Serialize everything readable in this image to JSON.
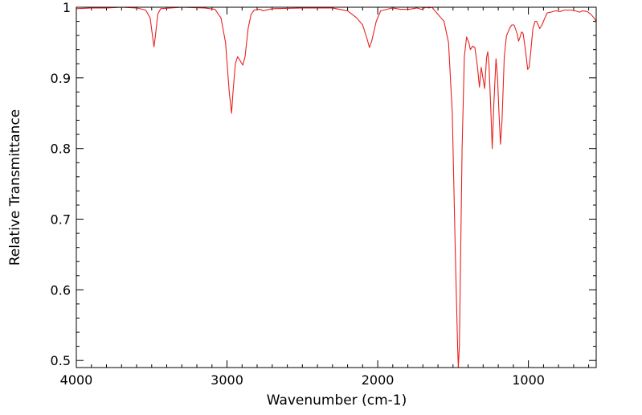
{
  "chart_data": {
    "type": "line",
    "title": "",
    "xlabel": "Wavenumber (cm-1)",
    "ylabel": "Relative Transmittance",
    "xlim": [
      4000,
      550
    ],
    "ylim": [
      0.49,
      1.0
    ],
    "x_reversed": true,
    "grid": false,
    "legend": "none",
    "x_ticks": [
      4000,
      3000,
      2000,
      1000
    ],
    "x_tick_labels": [
      "4000",
      "3000",
      "2000",
      "1000"
    ],
    "y_ticks": [
      0.5,
      0.6,
      0.7,
      0.8,
      0.9,
      1.0
    ],
    "y_tick_labels": [
      "0.5",
      "0.6",
      "0.7",
      "0.8",
      "0.9",
      "1"
    ],
    "series": [
      {
        "color": "#e8211f",
        "points": [
          [
            4000,
            0.998
          ],
          [
            3900,
            0.999
          ],
          [
            3800,
            0.999
          ],
          [
            3700,
            1.0
          ],
          [
            3600,
            0.999
          ],
          [
            3540,
            0.996
          ],
          [
            3510,
            0.985
          ],
          [
            3495,
            0.96
          ],
          [
            3485,
            0.944
          ],
          [
            3475,
            0.96
          ],
          [
            3460,
            0.99
          ],
          [
            3440,
            0.998
          ],
          [
            3300,
            1.0
          ],
          [
            3150,
            0.999
          ],
          [
            3080,
            0.997
          ],
          [
            3040,
            0.985
          ],
          [
            3010,
            0.95
          ],
          [
            2985,
            0.88
          ],
          [
            2970,
            0.85
          ],
          [
            2960,
            0.88
          ],
          [
            2945,
            0.92
          ],
          [
            2930,
            0.93
          ],
          [
            2915,
            0.925
          ],
          [
            2895,
            0.918
          ],
          [
            2880,
            0.93
          ],
          [
            2860,
            0.97
          ],
          [
            2840,
            0.99
          ],
          [
            2820,
            0.996
          ],
          [
            2780,
            0.997
          ],
          [
            2760,
            0.995
          ],
          [
            2700,
            0.998
          ],
          [
            2500,
            0.999
          ],
          [
            2300,
            0.999
          ],
          [
            2200,
            0.995
          ],
          [
            2140,
            0.985
          ],
          [
            2100,
            0.975
          ],
          [
            2070,
            0.955
          ],
          [
            2055,
            0.943
          ],
          [
            2040,
            0.952
          ],
          [
            2010,
            0.98
          ],
          [
            1980,
            0.995
          ],
          [
            1900,
            0.999
          ],
          [
            1850,
            0.997
          ],
          [
            1790,
            0.997
          ],
          [
            1740,
            0.999
          ],
          [
            1710,
            0.997
          ],
          [
            1680,
            1.0
          ],
          [
            1660,
            0.999
          ],
          [
            1640,
            1.0
          ],
          [
            1620,
            0.995
          ],
          [
            1580,
            0.985
          ],
          [
            1560,
            0.98
          ],
          [
            1530,
            0.95
          ],
          [
            1505,
            0.85
          ],
          [
            1485,
            0.65
          ],
          [
            1470,
            0.52
          ],
          [
            1465,
            0.49
          ],
          [
            1458,
            0.52
          ],
          [
            1440,
            0.8
          ],
          [
            1425,
            0.93
          ],
          [
            1410,
            0.958
          ],
          [
            1395,
            0.95
          ],
          [
            1385,
            0.94
          ],
          [
            1370,
            0.945
          ],
          [
            1355,
            0.943
          ],
          [
            1340,
            0.92
          ],
          [
            1325,
            0.887
          ],
          [
            1313,
            0.915
          ],
          [
            1300,
            0.898
          ],
          [
            1290,
            0.885
          ],
          [
            1278,
            0.928
          ],
          [
            1270,
            0.937
          ],
          [
            1262,
            0.92
          ],
          [
            1250,
            0.86
          ],
          [
            1240,
            0.8
          ],
          [
            1230,
            0.86
          ],
          [
            1215,
            0.927
          ],
          [
            1205,
            0.9
          ],
          [
            1195,
            0.85
          ],
          [
            1185,
            0.806
          ],
          [
            1175,
            0.84
          ],
          [
            1160,
            0.93
          ],
          [
            1145,
            0.96
          ],
          [
            1120,
            0.972
          ],
          [
            1110,
            0.975
          ],
          [
            1095,
            0.975
          ],
          [
            1075,
            0.963
          ],
          [
            1065,
            0.952
          ],
          [
            1055,
            0.958
          ],
          [
            1045,
            0.965
          ],
          [
            1035,
            0.963
          ],
          [
            1020,
            0.94
          ],
          [
            1005,
            0.912
          ],
          [
            995,
            0.915
          ],
          [
            985,
            0.935
          ],
          [
            970,
            0.97
          ],
          [
            955,
            0.98
          ],
          [
            945,
            0.98
          ],
          [
            935,
            0.975
          ],
          [
            925,
            0.97
          ],
          [
            910,
            0.975
          ],
          [
            890,
            0.985
          ],
          [
            875,
            0.992
          ],
          [
            850,
            0.993
          ],
          [
            820,
            0.995
          ],
          [
            790,
            0.994
          ],
          [
            760,
            0.996
          ],
          [
            720,
            0.996
          ],
          [
            690,
            0.995
          ],
          [
            660,
            0.993
          ],
          [
            640,
            0.995
          ],
          [
            610,
            0.994
          ],
          [
            585,
            0.99
          ],
          [
            565,
            0.985
          ],
          [
            550,
            0.98
          ]
        ]
      }
    ]
  }
}
